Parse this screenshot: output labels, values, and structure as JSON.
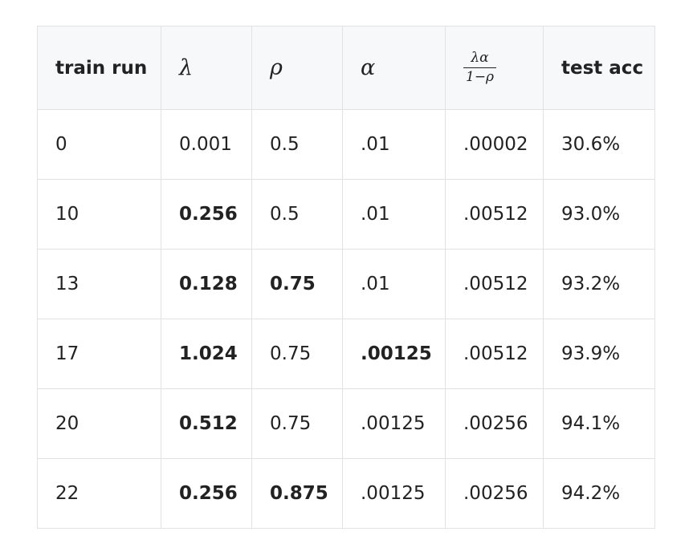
{
  "table": {
    "headers": {
      "train_run": "train run",
      "lambda": "λ",
      "rho": "ρ",
      "alpha": "α",
      "ratio_numerator": "λα",
      "ratio_denominator": "1−ρ",
      "test_acc": "test acc"
    },
    "rows": [
      {
        "train_run": "0",
        "lambda": "0.001",
        "rho": "0.5",
        "alpha": ".01",
        "ratio": ".00002",
        "test_acc": "30.6%"
      },
      {
        "train_run": "10",
        "lambda": "0.256",
        "rho": "0.5",
        "alpha": ".01",
        "ratio": ".00512",
        "test_acc": "93.0%"
      },
      {
        "train_run": "13",
        "lambda": "0.128",
        "rho": "0.75",
        "alpha": ".01",
        "ratio": ".00512",
        "test_acc": "93.2%"
      },
      {
        "train_run": "17",
        "lambda": "1.024",
        "rho": "0.75",
        "alpha": ".00125",
        "ratio": ".00512",
        "test_acc": "93.9%"
      },
      {
        "train_run": "20",
        "lambda": "0.512",
        "rho": "0.75",
        "alpha": ".00125",
        "ratio": ".00256",
        "test_acc": "94.1%"
      },
      {
        "train_run": "22",
        "lambda": "0.256",
        "rho": "0.875",
        "alpha": ".00125",
        "ratio": ".00256",
        "test_acc": "94.2%"
      }
    ]
  }
}
